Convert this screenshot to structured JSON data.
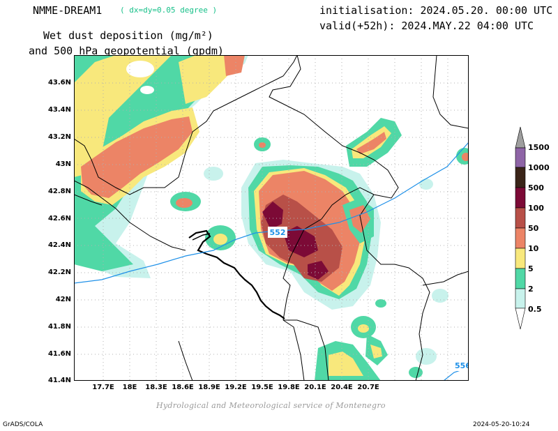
{
  "header": {
    "model": "NMME-DREAM1",
    "resolution": "( dx=dy=0.05 degree )",
    "title_line1": "Wet dust deposition (mg/m²)",
    "title_line2": "and 500 hPa geopotential (gpdm)",
    "init": "initialisation: 2024.05.20. 00:00 UTC",
    "valid": "valid(+52h): 2024.MAY.22 04:00 UTC"
  },
  "map": {
    "lat_labels": [
      "43.6N",
      "43.4N",
      "43.2N",
      "43N",
      "42.8N",
      "42.6N",
      "42.4N",
      "42.2N",
      "42N",
      "41.8N",
      "41.6N",
      "41.4N"
    ],
    "lon_labels": [
      "17.7E",
      "18E",
      "18.3E",
      "18.6E",
      "18.9E",
      "19.2E",
      "19.5E",
      "19.8E",
      "20.1E",
      "20.4E",
      "20.7E"
    ],
    "contour_labels": [
      "552",
      "556"
    ],
    "contour_color": "#1e90e8"
  },
  "legend": {
    "levels": [
      "0.5",
      "2",
      "5",
      "10",
      "50",
      "100",
      "500",
      "1000",
      "1500"
    ],
    "colors": {
      "0.5": "#c8f2ec",
      "2": "#50d8a6",
      "5": "#f8e87c",
      "10": "#ec8466",
      "50": "#b85048",
      "100": "#7c0a36",
      "500": "#3a2418",
      "1000": "#8e64a6",
      "1500": "#9e9e9e"
    }
  },
  "footer": {
    "credit": "Hydrological and Meteorological service of Montenegro",
    "left": "GrADS/COLA",
    "right": "2024-05-20-10:24"
  }
}
